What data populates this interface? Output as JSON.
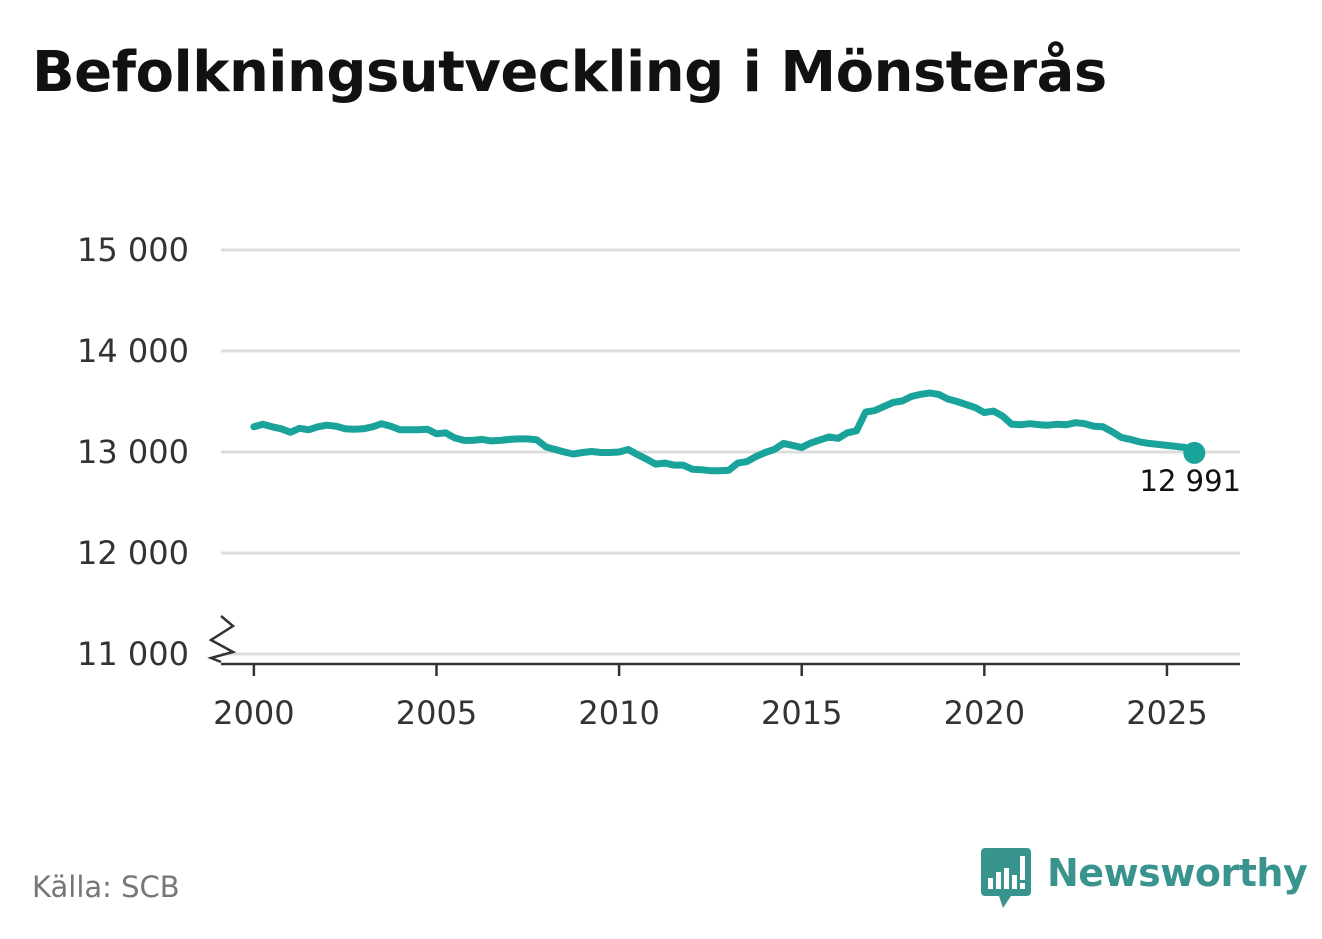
{
  "title": "Befolkningsutveckling i Mönsterås",
  "source": "Källa: SCB",
  "brand": {
    "name": "Newsworthy",
    "logo_icon": "newsworthy-chart-bubble-icon",
    "color": "#3a948e"
  },
  "chart_data": {
    "type": "line",
    "title": "",
    "xlabel": "",
    "ylabel": "",
    "xlim": [
      1999.1,
      2027
    ],
    "ylim": [
      11000,
      15000
    ],
    "y_axis_break": true,
    "x_ticks": [
      2000,
      2005,
      2010,
      2015,
      2020,
      2025
    ],
    "x_tick_labels": [
      "2000",
      "2005",
      "2010",
      "2015",
      "2020",
      "2025"
    ],
    "y_ticks": [
      11000,
      12000,
      13000,
      14000,
      15000
    ],
    "y_tick_labels": [
      "11 000",
      "12 000",
      "13 000",
      "14 000",
      "15 000"
    ],
    "grid": true,
    "legend": "none",
    "line_color": "#1aa39a",
    "series": [
      {
        "x": [
          2000.0,
          2000.25,
          2000.5,
          2000.75,
          2001.0,
          2001.25,
          2001.5,
          2001.75,
          2002.0,
          2002.25,
          2002.5,
          2002.75,
          2003.0,
          2003.25,
          2003.5,
          2003.75,
          2004.0,
          2004.25,
          2004.5,
          2004.75,
          2005.0,
          2005.25,
          2005.5,
          2005.75,
          2006.0,
          2006.25,
          2006.5,
          2006.75,
          2007.0,
          2007.25,
          2007.5,
          2007.75,
          2008.0,
          2008.25,
          2008.5,
          2008.75,
          2009.0,
          2009.25,
          2009.5,
          2009.75,
          2010.0,
          2010.25,
          2010.5,
          2010.75,
          2011.0,
          2011.25,
          2011.5,
          2011.75,
          2012.0,
          2012.25,
          2012.5,
          2012.75,
          2013.0,
          2013.25,
          2013.5,
          2013.75,
          2014.0,
          2014.25,
          2014.5,
          2014.75,
          2015.0,
          2015.25,
          2015.5,
          2015.75,
          2016.0,
          2016.25,
          2016.5,
          2016.75,
          2017.0,
          2017.25,
          2017.5,
          2017.75,
          2018.0,
          2018.25,
          2018.5,
          2018.75,
          2019.0,
          2019.25,
          2019.5,
          2019.75,
          2020.0,
          2020.25,
          2020.5,
          2020.75,
          2021.0,
          2021.25,
          2021.5,
          2021.75,
          2022.0,
          2022.25,
          2022.5,
          2022.75,
          2023.0,
          2023.25,
          2023.5,
          2023.75,
          2024.0,
          2024.25,
          2024.5,
          2024.75,
          2025.0,
          2025.25,
          2025.5,
          2025.75
        ],
        "y": [
          13250,
          13275,
          13250,
          13230,
          13195,
          13235,
          13220,
          13250,
          13265,
          13255,
          13230,
          13225,
          13230,
          13250,
          13280,
          13255,
          13220,
          13220,
          13220,
          13225,
          13180,
          13190,
          13140,
          13115,
          13115,
          13125,
          13110,
          13115,
          13125,
          13130,
          13130,
          13120,
          13050,
          13025,
          13000,
          12980,
          12995,
          13005,
          12995,
          12995,
          13000,
          13025,
          12975,
          12930,
          12880,
          12890,
          12870,
          12870,
          12830,
          12825,
          12815,
          12815,
          12820,
          12890,
          12905,
          12955,
          12995,
          13025,
          13085,
          13065,
          13045,
          13090,
          13120,
          13150,
          13135,
          13190,
          13210,
          13395,
          13410,
          13450,
          13490,
          13505,
          13550,
          13570,
          13585,
          13570,
          13525,
          13500,
          13470,
          13440,
          13390,
          13405,
          13355,
          13275,
          13270,
          13280,
          13270,
          13265,
          13275,
          13270,
          13290,
          13280,
          13255,
          13250,
          13200,
          13145,
          13125,
          13100,
          13085,
          13075,
          13065,
          13055,
          13045,
          12991
        ]
      }
    ],
    "end_point": {
      "x": 2025.75,
      "value": 12991,
      "label": "12 991"
    }
  }
}
